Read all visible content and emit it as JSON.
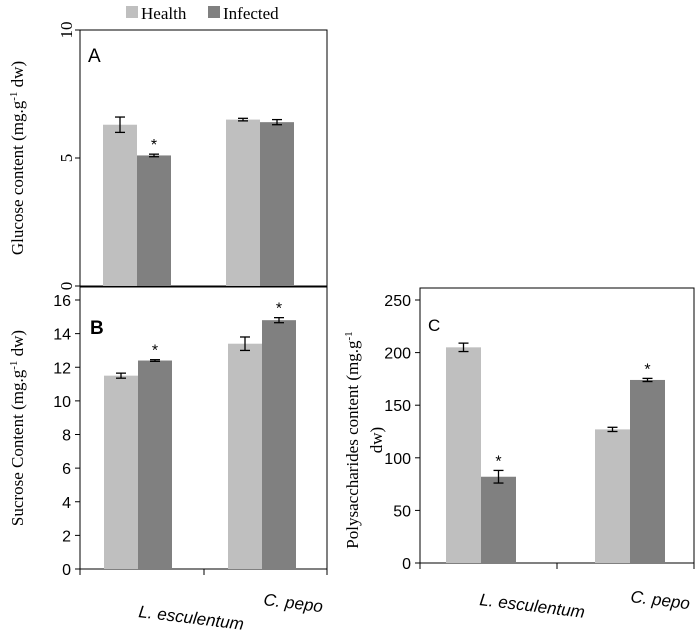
{
  "legend": {
    "placement": "top",
    "items": [
      {
        "label": "Health",
        "color": "#bfbfbf"
      },
      {
        "label": "Infected",
        "color": "#808080"
      }
    ]
  },
  "x_categories": [
    "L.  esculentum",
    "C. pepo"
  ],
  "chart_data": [
    {
      "type": "bar",
      "panel": "A",
      "title": "",
      "ylabel": "Glucose content (mg.g-1 dw)",
      "ylabel_main": "Glucose content (mg.g",
      "ylabel_sup": "-1",
      "ylabel_tail": " dw)",
      "ylim": [
        0,
        10
      ],
      "yticks": [
        "0",
        "5",
        "10"
      ],
      "categories": [
        "L.  esculentum",
        "C. pepo"
      ],
      "series": [
        {
          "name": "Health",
          "values": [
            6.3,
            6.5
          ],
          "errors": [
            0.3,
            0.05
          ]
        },
        {
          "name": "Infected",
          "values": [
            5.1,
            6.4
          ],
          "errors": [
            0.05,
            0.1
          ]
        }
      ],
      "annotations": [
        {
          "series": 1,
          "category": 0,
          "text": "*"
        }
      ]
    },
    {
      "type": "bar",
      "panel": "B",
      "title": "",
      "ylabel": "Sucrose Content (mg.g-1 dw)",
      "ylabel_main": "Sucrose Content (mg.g",
      "ylabel_sup": "-1",
      "ylabel_tail": " dw)",
      "ylim": [
        0,
        16
      ],
      "yticks": [
        "0",
        "2",
        "4",
        "6",
        "8",
        "10",
        "12",
        "14",
        "16"
      ],
      "categories": [
        "L.  esculentum",
        "C. pepo"
      ],
      "series": [
        {
          "name": "Health",
          "values": [
            11.5,
            13.4
          ],
          "errors": [
            0.15,
            0.4
          ]
        },
        {
          "name": "Infected",
          "values": [
            12.4,
            14.8
          ],
          "errors": [
            0.05,
            0.15
          ]
        }
      ],
      "annotations": [
        {
          "series": 1,
          "category": 0,
          "text": "*"
        },
        {
          "series": 1,
          "category": 1,
          "text": "*"
        }
      ]
    },
    {
      "type": "bar",
      "panel": "C",
      "title": "",
      "ylabel": "Polysaccharides content (mg.g-1 dw)",
      "ylabel_main": "Polysaccharides content (mg.g",
      "ylabel_sup": "-1",
      "ylabel_line2": "dw)",
      "ylim": [
        0,
        250
      ],
      "yticks": [
        "0",
        "50",
        "100",
        "150",
        "200",
        "250"
      ],
      "categories": [
        "L.  esculentum",
        "C. pepo"
      ],
      "series": [
        {
          "name": "Health",
          "values": [
            205,
            127
          ],
          "errors": [
            4,
            2
          ]
        },
        {
          "name": "Infected",
          "values": [
            82,
            174
          ],
          "errors": [
            6,
            1.5
          ]
        }
      ],
      "annotations": [
        {
          "series": 1,
          "category": 0,
          "text": "*"
        },
        {
          "series": 1,
          "category": 1,
          "text": "*"
        }
      ]
    }
  ]
}
